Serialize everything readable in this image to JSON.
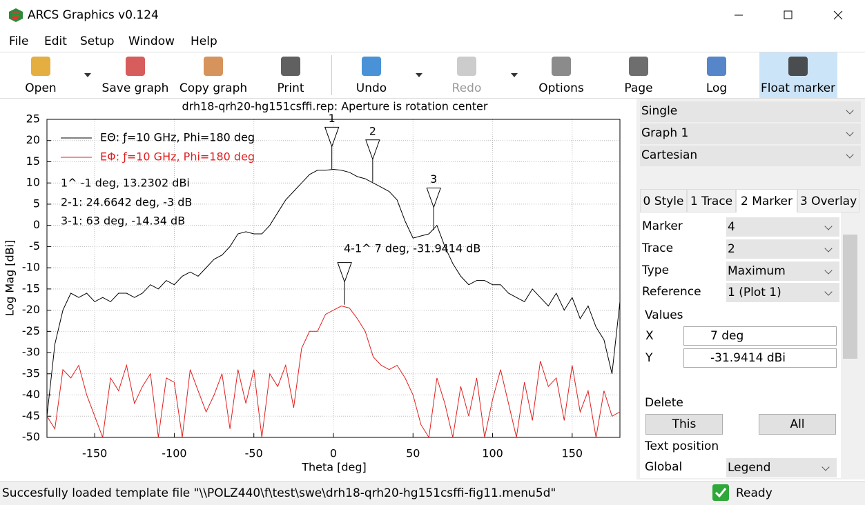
{
  "window": {
    "title": "ARCS Graphics v0.124"
  },
  "menu": [
    "File",
    "Edit",
    "Setup",
    "Window",
    "Help"
  ],
  "toolbar": [
    "Open",
    "Save graph",
    "Copy graph",
    "Print",
    "Undo",
    "Redo",
    "Options",
    "Page",
    "Log",
    "Float marker"
  ],
  "chart_data": {
    "type": "line",
    "title": "drh18-qrh20-hg151csffi.rep: Aperture is rotation center",
    "xlabel": "Theta [deg]",
    "ylabel": "Log Mag [dBi]",
    "xlim": [
      -180,
      180
    ],
    "xticks": [
      -150,
      -100,
      -50,
      0,
      50,
      100,
      150
    ],
    "ylim": [
      -50,
      25
    ],
    "yticks": [
      -50,
      -45,
      -40,
      -35,
      -30,
      -25,
      -20,
      -15,
      -10,
      -5,
      0,
      5,
      10,
      15,
      20,
      25
    ],
    "grid": true,
    "x": [
      -180,
      -175,
      -170,
      -165,
      -160,
      -155,
      -150,
      -145,
      -140,
      -135,
      -130,
      -125,
      -120,
      -115,
      -110,
      -105,
      -100,
      -95,
      -90,
      -85,
      -80,
      -75,
      -70,
      -65,
      -60,
      -55,
      -50,
      -45,
      -40,
      -35,
      -30,
      -25,
      -20,
      -15,
      -10,
      -5,
      0,
      5,
      10,
      15,
      20,
      25,
      30,
      35,
      40,
      45,
      50,
      55,
      60,
      65,
      70,
      75,
      80,
      85,
      90,
      95,
      100,
      105,
      110,
      115,
      120,
      125,
      130,
      135,
      140,
      145,
      150,
      155,
      160,
      165,
      170,
      175,
      180
    ],
    "series": [
      {
        "name": "EΘ: ƒ=10 GHz, Phi=180 deg",
        "color": "#000000",
        "values": [
          -45,
          -28,
          -20,
          -16,
          -17,
          -16,
          -18,
          -17,
          -18,
          -16,
          -16,
          -17,
          -16,
          -14,
          -15,
          -13,
          -14,
          -12,
          -11,
          -12,
          -10,
          -8,
          -7,
          -5,
          -2,
          -1.5,
          -2,
          -2,
          0,
          3,
          6,
          8,
          10,
          12,
          13,
          13,
          13.2,
          13,
          12.5,
          11.5,
          11,
          10,
          9,
          8,
          6,
          1,
          -3,
          -2.5,
          -2,
          0,
          -5,
          -9,
          -12,
          -14,
          -13,
          -13,
          -14,
          -14,
          -16,
          -17,
          -18,
          -15,
          -17,
          -19,
          -16,
          -20,
          -17,
          -22,
          -19,
          -24,
          -27,
          -35,
          -18
        ]
      },
      {
        "name": "EΦ: ƒ=10 GHz, Phi=180 deg",
        "color": "#e02020",
        "values": [
          -45,
          -48,
          -34,
          -36,
          -33,
          -40,
          -45,
          -50,
          -36,
          -39,
          -33,
          -42,
          -38,
          -35,
          -50,
          -36,
          -37,
          -50,
          -34,
          -39,
          -44,
          -40,
          -35,
          -48,
          -34,
          -42,
          -34,
          -50,
          -35,
          -38,
          -33,
          -43,
          -29,
          -25,
          -25,
          -21,
          -20,
          -19,
          -19.5,
          -22,
          -25,
          -31,
          -33,
          -34,
          -33,
          -36,
          -40,
          -47,
          -50,
          -36,
          -42,
          -50,
          -38,
          -45,
          -36,
          -50,
          -41,
          -34,
          -42,
          -50,
          -37,
          -46,
          -32,
          -38,
          -36,
          -46,
          -33,
          -44,
          -39,
          -50,
          -39,
          -45,
          -44
        ]
      }
    ],
    "annotations": [
      "1^ -1 deg, 13.2302 dBi",
      "2-1: 24.6642 deg, -3 dB",
      "3-1: 63 deg, -14.34 dB",
      "4-1^ 7 deg, -31.9414 dB"
    ],
    "markers": [
      {
        "label": "1",
        "x": -1,
        "y": 13.2302
      },
      {
        "label": "2",
        "x": 24.6642,
        "y": 10.2302
      },
      {
        "label": "3",
        "x": 63,
        "y": -1.11
      },
      {
        "x": 7,
        "y": -18.71
      }
    ]
  },
  "panel": {
    "dropdowns": [
      "Single",
      "Graph 1",
      "Cartesian"
    ],
    "tabs": [
      "0 Style",
      "1 Trace",
      "2 Marker",
      "3 Overlay"
    ],
    "fields": [
      {
        "label": "Marker",
        "value": "4"
      },
      {
        "label": "Trace",
        "value": "2"
      },
      {
        "label": "Type",
        "value": "Maximum"
      },
      {
        "label": "Reference",
        "value": "1 (Plot 1)"
      }
    ],
    "values_title": "Values",
    "x_label": "X",
    "x_value": "7 deg",
    "y_label": "Y",
    "y_value": "-31.9414 dBi",
    "delete_title": "Delete",
    "delete_this": "This",
    "delete_all": "All",
    "text_position_title": "Text position",
    "global_label": "Global",
    "global_value": "Legend"
  },
  "status": {
    "message": "Succesfully loaded template file \"\\\\POLZ440\\f\\test\\swe\\drh18-qrh20-hg151csffi-fig11.menu5d\"",
    "state": "Ready"
  }
}
